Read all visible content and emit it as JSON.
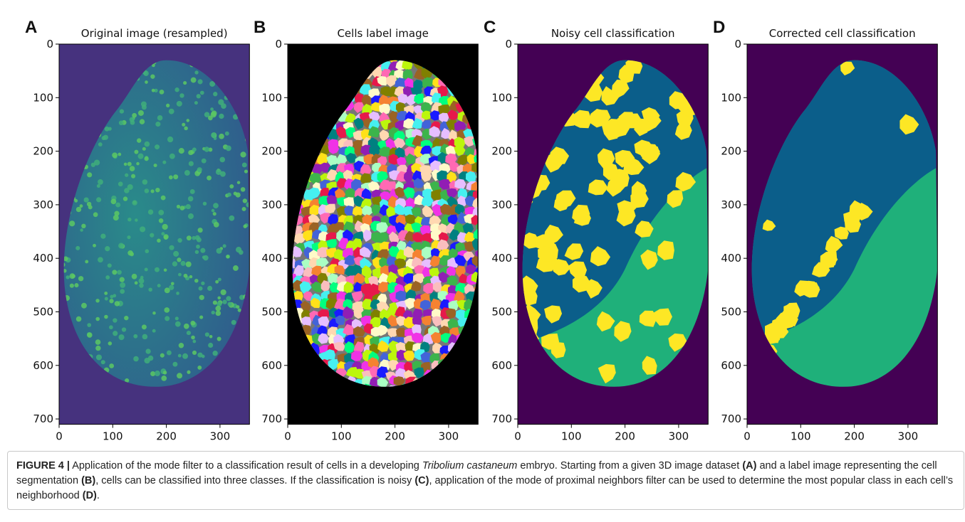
{
  "figure": {
    "panels": [
      {
        "letter": "A",
        "title": "Original image (resampled)",
        "xlim": [
          0,
          355
        ],
        "ylim": [
          0,
          710
        ],
        "xticks": [
          0,
          100,
          200,
          300
        ],
        "yticks": [
          0,
          100,
          200,
          300,
          400,
          500,
          600,
          700
        ]
      },
      {
        "letter": "B",
        "title": "Cells label image",
        "xlim": [
          0,
          355
        ],
        "ylim": [
          0,
          710
        ],
        "xticks": [
          0,
          100,
          200,
          300
        ],
        "yticks": [
          0,
          100,
          200,
          300,
          400,
          500,
          600,
          700
        ]
      },
      {
        "letter": "C",
        "title": "Noisy cell classification",
        "xlim": [
          0,
          355
        ],
        "ylim": [
          0,
          710
        ],
        "xticks": [
          0,
          100,
          200,
          300
        ],
        "yticks": [
          0,
          100,
          200,
          300,
          400,
          500,
          600,
          700
        ]
      },
      {
        "letter": "D",
        "title": "Corrected cell classification",
        "xlim": [
          0,
          355
        ],
        "ylim": [
          0,
          710
        ],
        "xticks": [
          0,
          100,
          200,
          300
        ],
        "yticks": [
          0,
          100,
          200,
          300,
          400,
          500,
          600,
          700
        ]
      }
    ]
  },
  "caption": {
    "runs": [
      "FIGURE 4 |",
      " Application of the mode filter to a classification result of cells in a developing ",
      "Tribolium castaneum",
      " embryo. Starting from a given 3D image dataset ",
      "(A)",
      " and a label image representing the cell segmentation ",
      "(B)",
      ", cells can be classified into three classes. If the classification is noisy ",
      "(C)",
      ", application of the mode of proximal neighbors filter can be used to determine the most popular class in each cell’s neighborhood ",
      "(D)",
      "."
    ]
  }
}
